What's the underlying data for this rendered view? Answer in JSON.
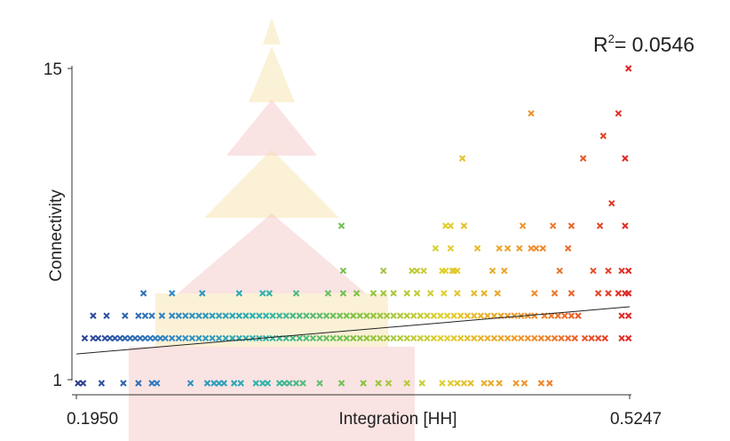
{
  "chart_data": {
    "type": "scatter",
    "title": "",
    "xlabel": "Integration [HH]",
    "ylabel": "Connectivity",
    "annotation": {
      "r2_label": "R",
      "r2_sup": "2",
      "r2_text": "= 0.0546"
    },
    "xlim": [
      0.195,
      0.5247
    ],
    "ylim": [
      1,
      15
    ],
    "x_tick_labels": [
      "0.1950",
      "0.5247"
    ],
    "y_tick_labels": [
      "15",
      "1"
    ],
    "marker": "x",
    "color_scale": [
      "#2b3a8f",
      "#2f86c8",
      "#2bb3b0",
      "#7cc242",
      "#e0cf2a",
      "#f08a2a",
      "#e02424"
    ],
    "watermark_colors": [
      "#f6dfa4",
      "#f3c2c2"
    ],
    "trendline": {
      "x": [
        0.195,
        0.5247
      ],
      "y": [
        2.3,
        4.4
      ]
    },
    "grid": false,
    "legend": "none",
    "points": [
      [
        0.196,
        1
      ],
      [
        0.199,
        1
      ],
      [
        0.21,
        1
      ],
      [
        0.223,
        1
      ],
      [
        0.232,
        1
      ],
      [
        0.24,
        1
      ],
      [
        0.243,
        1
      ],
      [
        0.263,
        1
      ],
      [
        0.273,
        1
      ],
      [
        0.277,
        1
      ],
      [
        0.28,
        1
      ],
      [
        0.283,
        1
      ],
      [
        0.289,
        1
      ],
      [
        0.293,
        1
      ],
      [
        0.302,
        1
      ],
      [
        0.306,
        1
      ],
      [
        0.309,
        1
      ],
      [
        0.316,
        1
      ],
      [
        0.319,
        1
      ],
      [
        0.322,
        1
      ],
      [
        0.326,
        1
      ],
      [
        0.33,
        1
      ],
      [
        0.34,
        1
      ],
      [
        0.353,
        1
      ],
      [
        0.366,
        1
      ],
      [
        0.375,
        1
      ],
      [
        0.381,
        1
      ],
      [
        0.392,
        1
      ],
      [
        0.401,
        1
      ],
      [
        0.413,
        1
      ],
      [
        0.418,
        1
      ],
      [
        0.422,
        1
      ],
      [
        0.426,
        1
      ],
      [
        0.43,
        1
      ],
      [
        0.438,
        1
      ],
      [
        0.442,
        1
      ],
      [
        0.447,
        1
      ],
      [
        0.457,
        1
      ],
      [
        0.462,
        1
      ],
      [
        0.472,
        1
      ],
      [
        0.477,
        1
      ],
      [
        0.2,
        3
      ],
      [
        0.205,
        3
      ],
      [
        0.208,
        3
      ],
      [
        0.212,
        3
      ],
      [
        0.215,
        3
      ],
      [
        0.218,
        3
      ],
      [
        0.221,
        3
      ],
      [
        0.224,
        3
      ],
      [
        0.227,
        3
      ],
      [
        0.23,
        3
      ],
      [
        0.233,
        3
      ],
      [
        0.236,
        3
      ],
      [
        0.239,
        3
      ],
      [
        0.242,
        3
      ],
      [
        0.245,
        3
      ],
      [
        0.248,
        3
      ],
      [
        0.252,
        3
      ],
      [
        0.256,
        3
      ],
      [
        0.26,
        3
      ],
      [
        0.264,
        3
      ],
      [
        0.268,
        3
      ],
      [
        0.272,
        3
      ],
      [
        0.276,
        3
      ],
      [
        0.28,
        3
      ],
      [
        0.284,
        3
      ],
      [
        0.288,
        3
      ],
      [
        0.292,
        3
      ],
      [
        0.296,
        3
      ],
      [
        0.3,
        3
      ],
      [
        0.304,
        3
      ],
      [
        0.308,
        3
      ],
      [
        0.312,
        3
      ],
      [
        0.316,
        3
      ],
      [
        0.32,
        3
      ],
      [
        0.324,
        3
      ],
      [
        0.328,
        3
      ],
      [
        0.332,
        3
      ],
      [
        0.336,
        3
      ],
      [
        0.34,
        3
      ],
      [
        0.344,
        3
      ],
      [
        0.348,
        3
      ],
      [
        0.352,
        3
      ],
      [
        0.356,
        3
      ],
      [
        0.36,
        3
      ],
      [
        0.364,
        3
      ],
      [
        0.368,
        3
      ],
      [
        0.372,
        3
      ],
      [
        0.376,
        3
      ],
      [
        0.38,
        3
      ],
      [
        0.384,
        3
      ],
      [
        0.388,
        3
      ],
      [
        0.392,
        3
      ],
      [
        0.396,
        3
      ],
      [
        0.4,
        3
      ],
      [
        0.404,
        3
      ],
      [
        0.408,
        3
      ],
      [
        0.412,
        3
      ],
      [
        0.416,
        3
      ],
      [
        0.42,
        3
      ],
      [
        0.424,
        3
      ],
      [
        0.428,
        3
      ],
      [
        0.432,
        3
      ],
      [
        0.436,
        3
      ],
      [
        0.44,
        3
      ],
      [
        0.444,
        3
      ],
      [
        0.448,
        3
      ],
      [
        0.452,
        3
      ],
      [
        0.456,
        3
      ],
      [
        0.46,
        3
      ],
      [
        0.464,
        3
      ],
      [
        0.468,
        3
      ],
      [
        0.472,
        3
      ],
      [
        0.476,
        3
      ],
      [
        0.48,
        3
      ],
      [
        0.484,
        3
      ],
      [
        0.488,
        3
      ],
      [
        0.492,
        3
      ],
      [
        0.498,
        3
      ],
      [
        0.502,
        3
      ],
      [
        0.506,
        3
      ],
      [
        0.51,
        3
      ],
      [
        0.524,
        3
      ],
      [
        0.52,
        3
      ],
      [
        0.205,
        4
      ],
      [
        0.213,
        4
      ],
      [
        0.224,
        4
      ],
      [
        0.232,
        4
      ],
      [
        0.236,
        4
      ],
      [
        0.24,
        4
      ],
      [
        0.246,
        4
      ],
      [
        0.252,
        4
      ],
      [
        0.256,
        4
      ],
      [
        0.26,
        4
      ],
      [
        0.264,
        4
      ],
      [
        0.268,
        4
      ],
      [
        0.272,
        4
      ],
      [
        0.276,
        4
      ],
      [
        0.28,
        4
      ],
      [
        0.284,
        4
      ],
      [
        0.288,
        4
      ],
      [
        0.292,
        4
      ],
      [
        0.296,
        4
      ],
      [
        0.3,
        4
      ],
      [
        0.304,
        4
      ],
      [
        0.308,
        4
      ],
      [
        0.312,
        4
      ],
      [
        0.316,
        4
      ],
      [
        0.32,
        4
      ],
      [
        0.324,
        4
      ],
      [
        0.328,
        4
      ],
      [
        0.332,
        4
      ],
      [
        0.336,
        4
      ],
      [
        0.34,
        4
      ],
      [
        0.344,
        4
      ],
      [
        0.348,
        4
      ],
      [
        0.352,
        4
      ],
      [
        0.356,
        4
      ],
      [
        0.36,
        4
      ],
      [
        0.364,
        4
      ],
      [
        0.368,
        4
      ],
      [
        0.372,
        4
      ],
      [
        0.376,
        4
      ],
      [
        0.38,
        4
      ],
      [
        0.384,
        4
      ],
      [
        0.388,
        4
      ],
      [
        0.392,
        4
      ],
      [
        0.396,
        4
      ],
      [
        0.4,
        4
      ],
      [
        0.404,
        4
      ],
      [
        0.408,
        4
      ],
      [
        0.412,
        4
      ],
      [
        0.416,
        4
      ],
      [
        0.42,
        4
      ],
      [
        0.424,
        4
      ],
      [
        0.428,
        4
      ],
      [
        0.432,
        4
      ],
      [
        0.436,
        4
      ],
      [
        0.44,
        4
      ],
      [
        0.444,
        4
      ],
      [
        0.448,
        4
      ],
      [
        0.452,
        4
      ],
      [
        0.456,
        4
      ],
      [
        0.46,
        4
      ],
      [
        0.464,
        4
      ],
      [
        0.468,
        4
      ],
      [
        0.474,
        4
      ],
      [
        0.478,
        4
      ],
      [
        0.482,
        4
      ],
      [
        0.486,
        4
      ],
      [
        0.49,
        4
      ],
      [
        0.494,
        4
      ],
      [
        0.52,
        4
      ],
      [
        0.524,
        4
      ],
      [
        0.235,
        5
      ],
      [
        0.252,
        5
      ],
      [
        0.27,
        5
      ],
      [
        0.292,
        5
      ],
      [
        0.306,
        5
      ],
      [
        0.31,
        5
      ],
      [
        0.326,
        5
      ],
      [
        0.345,
        5
      ],
      [
        0.354,
        5
      ],
      [
        0.362,
        5
      ],
      [
        0.372,
        5
      ],
      [
        0.378,
        5
      ],
      [
        0.384,
        5
      ],
      [
        0.392,
        5
      ],
      [
        0.398,
        5
      ],
      [
        0.406,
        5
      ],
      [
        0.414,
        5
      ],
      [
        0.422,
        5
      ],
      [
        0.432,
        5
      ],
      [
        0.438,
        5
      ],
      [
        0.446,
        5
      ],
      [
        0.468,
        5
      ],
      [
        0.48,
        5
      ],
      [
        0.49,
        5
      ],
      [
        0.506,
        5
      ],
      [
        0.512,
        5
      ],
      [
        0.518,
        5
      ],
      [
        0.522,
        5
      ],
      [
        0.524,
        5
      ],
      [
        0.413,
        6
      ],
      [
        0.42,
        6
      ],
      [
        0.45,
        6
      ],
      [
        0.354,
        6
      ],
      [
        0.378,
        6
      ],
      [
        0.395,
        6
      ],
      [
        0.398,
        6
      ],
      [
        0.402,
        6
      ],
      [
        0.415,
        6
      ],
      [
        0.419,
        6
      ],
      [
        0.422,
        6
      ],
      [
        0.443,
        6
      ],
      [
        0.483,
        6
      ],
      [
        0.503,
        6
      ],
      [
        0.512,
        6
      ],
      [
        0.52,
        6
      ],
      [
        0.524,
        6
      ],
      [
        0.409,
        7
      ],
      [
        0.418,
        7
      ],
      [
        0.434,
        7
      ],
      [
        0.447,
        7
      ],
      [
        0.452,
        7
      ],
      [
        0.459,
        7
      ],
      [
        0.466,
        7
      ],
      [
        0.469,
        7
      ],
      [
        0.473,
        7
      ],
      [
        0.488,
        7
      ],
      [
        0.353,
        8
      ],
      [
        0.415,
        8
      ],
      [
        0.418,
        8
      ],
      [
        0.426,
        8
      ],
      [
        0.461,
        8
      ],
      [
        0.479,
        8
      ],
      [
        0.49,
        8
      ],
      [
        0.507,
        8
      ],
      [
        0.522,
        8
      ],
      [
        0.514,
        9
      ],
      [
        0.425,
        11
      ],
      [
        0.497,
        11
      ],
      [
        0.522,
        11
      ],
      [
        0.509,
        12
      ],
      [
        0.466,
        13
      ],
      [
        0.518,
        13
      ],
      [
        0.524,
        15
      ]
    ]
  }
}
